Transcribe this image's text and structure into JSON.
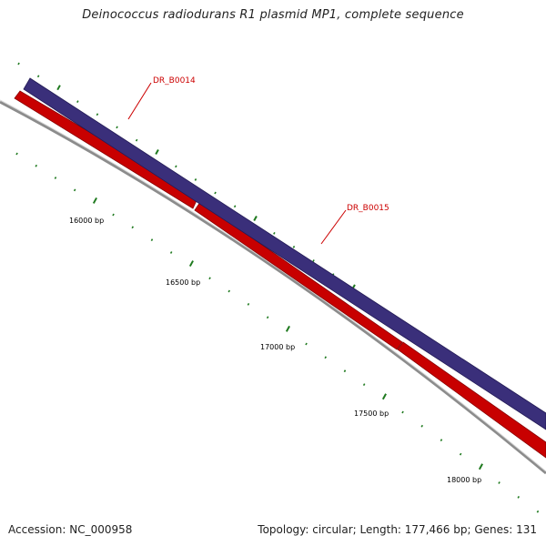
{
  "title": "Deinococcus radiodurans R1 plasmid MP1, complete sequence",
  "footer": {
    "accession": "Accession: NC_000958",
    "summary": "Topology: circular; Length: 177,466 bp; Genes: 131"
  },
  "colors": {
    "forward_strand": "#4b3f8f",
    "reverse_strand": "#ff0000",
    "backbone": "#8c8c8c",
    "tick": "#1f7a1f",
    "gene_label": "#cc0000"
  },
  "genes": [
    {
      "name": "DR_B0014",
      "strand": "forward"
    },
    {
      "name": "DR_B0015",
      "strand": "forward"
    },
    {
      "name": "",
      "strand": "reverse"
    },
    {
      "name": "",
      "strand": "reverse"
    },
    {
      "name": "",
      "strand": "reverse"
    }
  ],
  "bp_labels": [
    "16000 bp",
    "16500 bp",
    "17000 bp",
    "17500 bp",
    "18000 bp"
  ]
}
